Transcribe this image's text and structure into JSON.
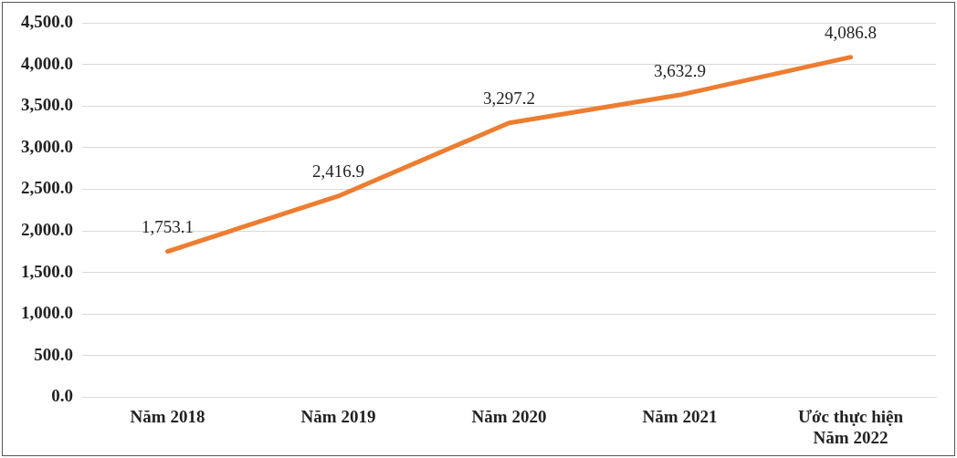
{
  "chart_data": {
    "type": "line",
    "categories": [
      "Năm 2018",
      "Năm 2019",
      "Năm 2020",
      "Năm 2021",
      "Ước thực hiện\nNăm 2022"
    ],
    "series": [
      {
        "color": "#ed7d31",
        "values": [
          1753.1,
          2416.9,
          3297.2,
          3632.9,
          4086.8
        ],
        "value_labels": [
          "1,753.1",
          "2,416.9",
          "3,297.2",
          "3,632.9",
          "4,086.8"
        ]
      }
    ],
    "ylim": [
      0,
      4500
    ],
    "yticks": [
      {
        "value": 0,
        "label": "0.0"
      },
      {
        "value": 500,
        "label": "500.0"
      },
      {
        "value": 1000,
        "label": "1,000.0"
      },
      {
        "value": 1500,
        "label": "1,500.0"
      },
      {
        "value": 2000,
        "label": "2,000.0"
      },
      {
        "value": 2500,
        "label": "2,500.0"
      },
      {
        "value": 3000,
        "label": "3,000.0"
      },
      {
        "value": 3500,
        "label": "3,500.0"
      },
      {
        "value": 4000,
        "label": "4,000.0"
      },
      {
        "value": 4500,
        "label": "4,500.0"
      }
    ],
    "grid": "y",
    "legend": false,
    "marker": "none",
    "line_style": "solid"
  }
}
